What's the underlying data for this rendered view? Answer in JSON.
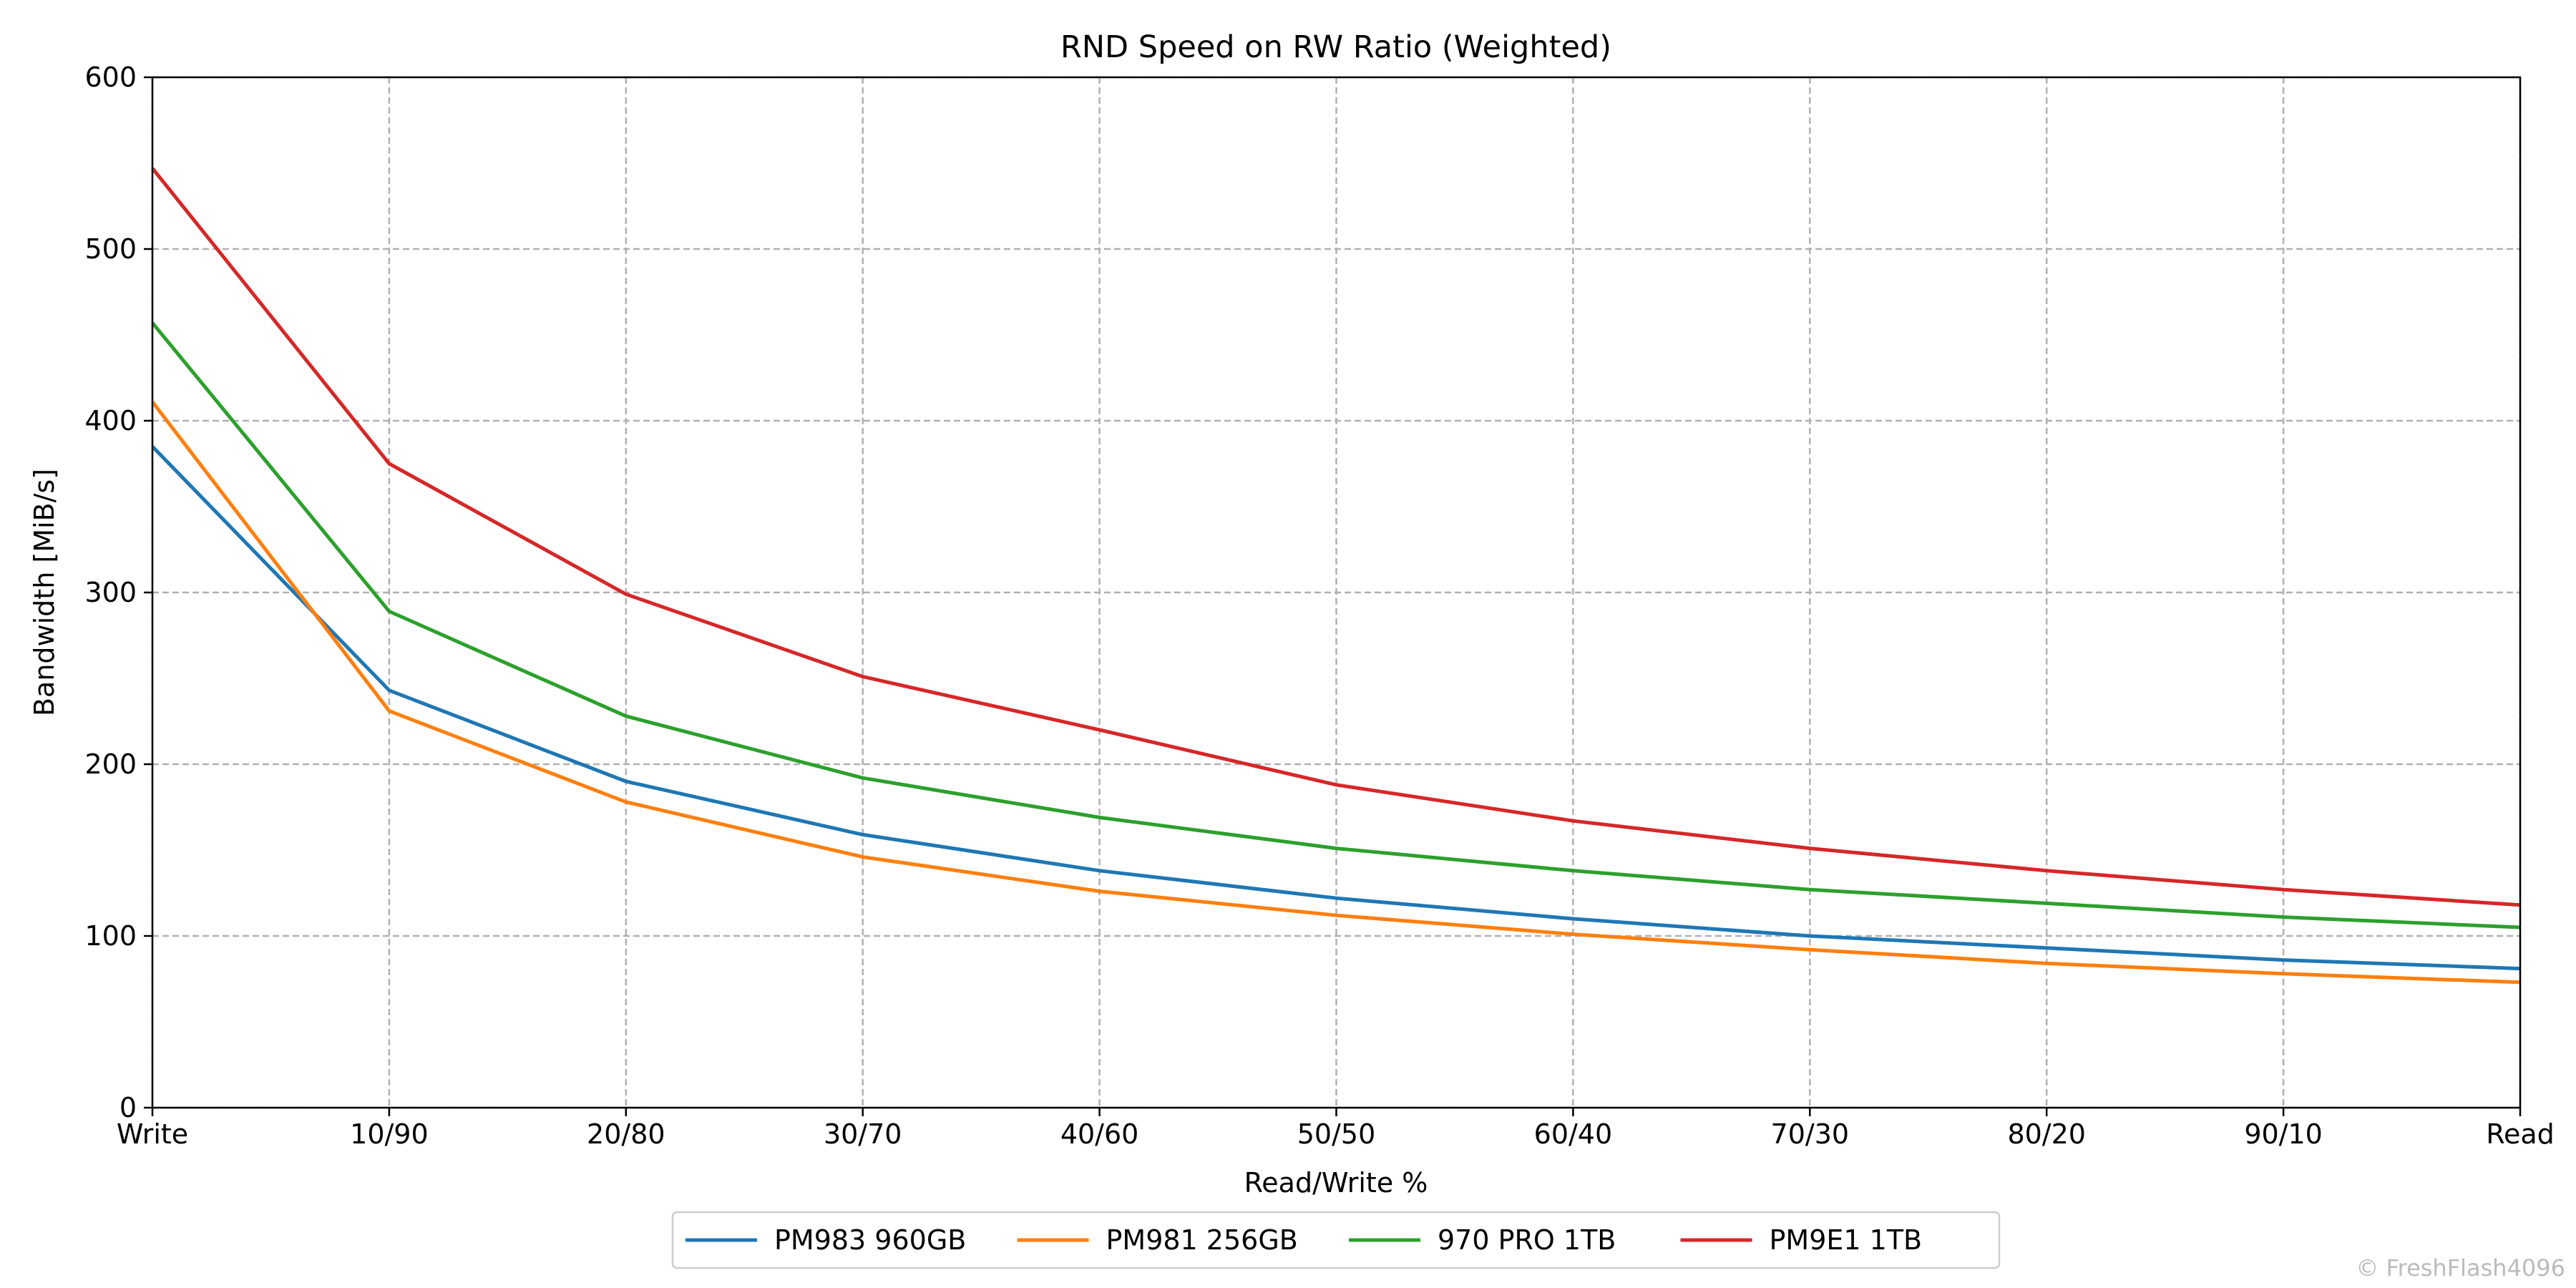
{
  "chart_data": {
    "type": "line",
    "title": "RND Speed on RW Ratio (Weighted)",
    "xlabel": "Read/Write %",
    "ylabel": "Bandwidth [MiB/s]",
    "categories": [
      "Write",
      "10/90",
      "20/80",
      "30/70",
      "40/60",
      "50/50",
      "60/40",
      "70/30",
      "80/20",
      "90/10",
      "Read"
    ],
    "ylim": [
      0,
      600
    ],
    "yticks": [
      0,
      100,
      200,
      300,
      400,
      500,
      600
    ],
    "grid": true,
    "legend_position": "bottom-center",
    "series": [
      {
        "name": "PM983 960GB",
        "color": "#1f77b4",
        "values": [
          385,
          243,
          190,
          159,
          138,
          122,
          110,
          100,
          93,
          86,
          81
        ]
      },
      {
        "name": "PM981 256GB",
        "color": "#ff7f0e",
        "values": [
          411,
          231,
          178,
          146,
          126,
          112,
          101,
          92,
          84,
          78,
          73
        ]
      },
      {
        "name": "970 PRO 1TB",
        "color": "#2ca02c",
        "values": [
          457,
          289,
          228,
          192,
          169,
          151,
          138,
          127,
          119,
          111,
          105
        ]
      },
      {
        "name": "PM9E1 1TB",
        "color": "#d62728",
        "values": [
          547,
          375,
          299,
          251,
          220,
          188,
          167,
          151,
          138,
          127,
          118
        ]
      }
    ]
  },
  "watermark": "© FreshFlash4096"
}
